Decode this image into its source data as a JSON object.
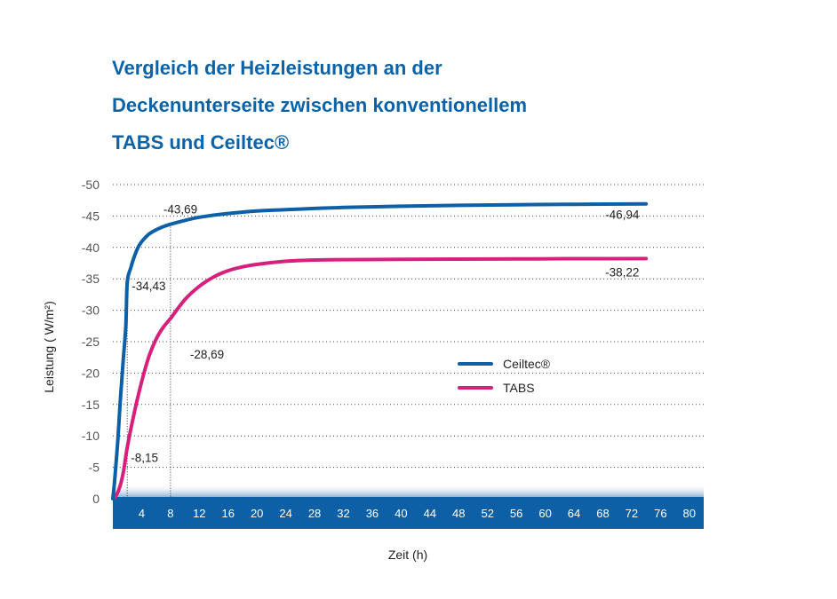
{
  "chart_data": {
    "type": "line",
    "title_lines": [
      "Vergleich der Heizleistungen an der",
      "Deckenunterseite zwischen konventionellem",
      "TABS und Ceiltec®"
    ],
    "xlabel": "Zeit (h)",
    "ylabel": "Leistung ( W/m²)",
    "xlim": [
      0,
      82
    ],
    "ylim": [
      0,
      -50
    ],
    "x_ticks": [
      "4",
      "8",
      "12",
      "16",
      "20",
      "24",
      "28",
      "32",
      "36",
      "40",
      "44",
      "48",
      "52",
      "56",
      "60",
      "64",
      "68",
      "72",
      "76",
      "80"
    ],
    "y_ticks": [
      "-50",
      "-45",
      "-40",
      "-35",
      "-30",
      "-25",
      "-20",
      "-15",
      "-10",
      "-5",
      "0"
    ],
    "grid": "horizontal dotted",
    "legend_position": "center-right",
    "series": [
      {
        "name": "Ceiltec®",
        "color": "#0d5fa6",
        "x": [
          0,
          0.3,
          0.7,
          1,
          1.4,
          1.8,
          2,
          2.5,
          3,
          3.5,
          4,
          5,
          6,
          7,
          8,
          10,
          12,
          16,
          20,
          24,
          28,
          32,
          40,
          48,
          56,
          64,
          74
        ],
        "y": [
          0,
          -3.5,
          -9.5,
          -15,
          -21.5,
          -27.5,
          -34.43,
          -36.8,
          -38.6,
          -40,
          -40.9,
          -42.1,
          -42.8,
          -43.3,
          -43.69,
          -44.3,
          -44.8,
          -45.4,
          -45.8,
          -46.0,
          -46.2,
          -46.35,
          -46.55,
          -46.7,
          -46.8,
          -46.87,
          -46.94
        ]
      },
      {
        "name": "TABS",
        "color": "#d6207c",
        "x": [
          0,
          0.5,
          1,
          1.5,
          2,
          3,
          4,
          5,
          6,
          7,
          8,
          10,
          12,
          14,
          16,
          18,
          20,
          24,
          28,
          32,
          40,
          48,
          56,
          64,
          74
        ],
        "y": [
          0,
          -0.6,
          -2,
          -4.5,
          -8.15,
          -13.8,
          -18.6,
          -22.6,
          -25.4,
          -27.3,
          -28.69,
          -31.7,
          -33.8,
          -35.3,
          -36.3,
          -36.9,
          -37.3,
          -37.8,
          -38.0,
          -38.05,
          -38.1,
          -38.14,
          -38.17,
          -38.2,
          -38.22
        ]
      }
    ],
    "annotations": [
      {
        "text": "-43,69",
        "x": 8,
        "y": -43.69
      },
      {
        "text": "-46,94",
        "x": 74,
        "y": -46.94
      },
      {
        "text": "-34,43",
        "x": 2,
        "y": -34.43
      },
      {
        "text": "-38,22",
        "x": 74,
        "y": -38.22
      },
      {
        "text": "-28,69",
        "x": 8,
        "y": -28.69
      },
      {
        "text": "-8,15",
        "x": 2,
        "y": -8.15
      }
    ]
  }
}
